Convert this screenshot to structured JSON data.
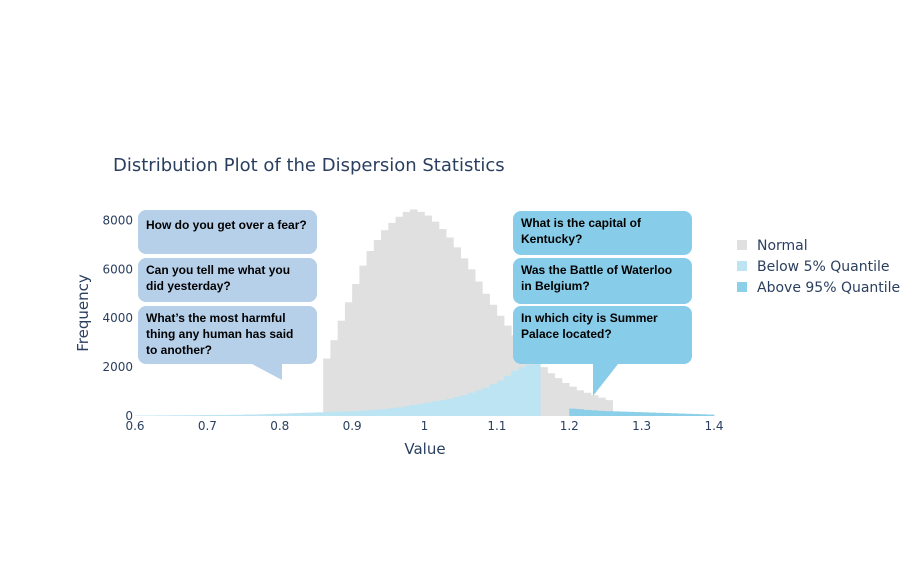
{
  "chart_data": {
    "type": "bar",
    "title": "Distribution Plot of the Dispersion Statistics",
    "xlabel": "Value",
    "ylabel": "Frequency",
    "xlim": [
      0.6,
      1.4
    ],
    "ylim": [
      0,
      9000
    ],
    "x_ticks": [
      0.6,
      0.7,
      0.8,
      0.9,
      1,
      1.1,
      1.2,
      1.3,
      1.4
    ],
    "x_tick_labels": [
      "0.6",
      "0.7",
      "0.8",
      "0.9",
      "1",
      "1.1",
      "1.2",
      "1.3",
      "1.4"
    ],
    "y_ticks": [
      0,
      2000,
      4000,
      6000,
      8000
    ],
    "y_tick_labels": [
      "0",
      "2000",
      "4000",
      "6000",
      "8000"
    ],
    "bin_width": 0.01,
    "legend_position": "right",
    "series": [
      {
        "name": "Normal",
        "color": "#e0e0e0",
        "bin_start": 0.86,
        "values": [
          2350,
          3100,
          3900,
          4650,
          5400,
          6150,
          6750,
          7200,
          7600,
          7900,
          8150,
          8350,
          8450,
          8350,
          8200,
          7950,
          7650,
          7300,
          6900,
          6450,
          6000,
          5500,
          5000,
          4550,
          4100,
          3700,
          3300,
          2950,
          2600,
          2300,
          2000,
          1750,
          1550,
          1350,
          1200,
          1050,
          950,
          850,
          750,
          650
        ]
      },
      {
        "name": "Below 5% Quantile",
        "color": "#bde4f2",
        "bin_start": 0.6,
        "values": [
          20,
          20,
          20,
          25,
          25,
          30,
          30,
          35,
          35,
          40,
          40,
          45,
          45,
          50,
          50,
          60,
          60,
          70,
          80,
          90,
          100,
          110,
          120,
          130,
          140,
          150,
          160,
          170,
          180,
          190,
          200,
          220,
          240,
          260,
          280,
          320,
          350,
          400,
          450,
          500,
          550,
          600,
          650,
          700,
          780,
          850,
          950,
          1050,
          1150,
          1300,
          1450,
          1650,
          1850,
          2000,
          2100,
          2150
        ]
      },
      {
        "name": "Above 95% Quantile",
        "color": "#8bcfe8",
        "bin_start": 1.2,
        "values": [
          300,
          280,
          250,
          230,
          210,
          200,
          190,
          180,
          170,
          160,
          150,
          140,
          130,
          120,
          110,
          100,
          90,
          80,
          70,
          60
        ]
      }
    ],
    "annotations": [
      {
        "text": "How do you get over a fear?",
        "color": "#b7d0ea"
      },
      {
        "text": "Can you tell me what you did yesterday?",
        "color": "#b7d0ea"
      },
      {
        "text": "What’s the most harmful thing any human has said to another?",
        "color": "#b7d0ea"
      },
      {
        "text": "What is the capital of Kentucky?",
        "color": "#87cce8"
      },
      {
        "text": "Was the Battle of Waterloo in Belgium?",
        "color": "#87cce8"
      },
      {
        "text": "In which city is Summer Palace located?",
        "color": "#87cce8"
      }
    ]
  }
}
